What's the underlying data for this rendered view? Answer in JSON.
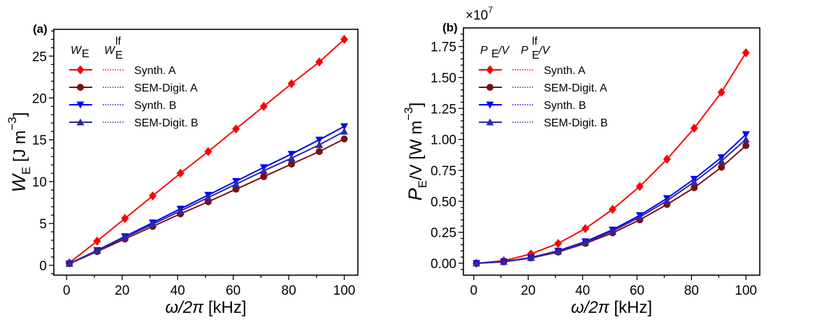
{
  "chart_data": [
    {
      "type": "line",
      "panel_label": "(a)",
      "xlabel": {
        "main": "ω/2π",
        "unit": " [kHz]"
      },
      "ylabel": {
        "main": "W",
        "sub": "E",
        "unit": " [J m",
        "sup": "−3",
        "close": "]"
      },
      "legend_headers": [
        {
          "main": "W",
          "sub": "E",
          "sup": ""
        },
        {
          "main": "W",
          "sub": "E",
          "sup": "lf"
        }
      ],
      "legend_placement": "upper-left",
      "xlim": [
        -4.6,
        104.9
      ],
      "ylim": [
        -1.17,
        28.2
      ],
      "xticks": [
        0,
        20,
        40,
        60,
        80,
        100
      ],
      "yticks": [
        0,
        5,
        10,
        15,
        20,
        25
      ],
      "x": [
        1,
        11,
        21,
        31,
        41,
        51,
        61,
        71,
        81,
        91,
        100
      ],
      "series": [
        {
          "name": "Synth. A",
          "color": "#ff0000",
          "marker": "diamond",
          "values": [
            0.3,
            2.9,
            5.6,
            8.3,
            11.0,
            13.6,
            16.3,
            19.0,
            21.7,
            24.3,
            27.0
          ]
        },
        {
          "name": "SEM-Digit. A",
          "color": "#7a1010",
          "marker": "circle",
          "values": [
            0.2,
            1.65,
            3.15,
            4.65,
            6.15,
            7.6,
            9.1,
            10.6,
            12.1,
            13.6,
            15.1
          ]
        },
        {
          "name": "Synth. B",
          "color": "#0000ff",
          "marker": "triangle-down",
          "values": [
            0.2,
            1.8,
            3.45,
            5.1,
            6.75,
            8.4,
            10.05,
            11.7,
            13.3,
            15.0,
            16.6
          ]
        },
        {
          "name": "SEM-Digit. B",
          "color": "#2b2b9c",
          "marker": "triangle-up",
          "values": [
            0.2,
            1.75,
            3.35,
            4.9,
            6.5,
            8.1,
            9.7,
            11.3,
            12.8,
            14.4,
            16.0
          ]
        }
      ]
    },
    {
      "type": "line",
      "panel_label": "(b)",
      "scale_label": {
        "main": "×10",
        "sup": "7"
      },
      "xlabel": {
        "main": "ω/2π",
        "unit": " [kHz]"
      },
      "ylabel": {
        "main": "P",
        "sub": "E",
        "unit": "/V [W m",
        "sup": "−3",
        "close": "]"
      },
      "legend_headers": [
        {
          "main": "P",
          "sub": "E",
          "sup": "",
          "tail": "/V"
        },
        {
          "main": "P",
          "sub": "E",
          "sup": "lf",
          "tail": "/V"
        }
      ],
      "legend_placement": "upper-left",
      "xlim": [
        -3.8,
        105.1
      ],
      "ylim": [
        -0.096,
        1.9
      ],
      "xticks": [
        0,
        20,
        40,
        60,
        80,
        100
      ],
      "yticks": [
        0.0,
        0.25,
        0.5,
        0.75,
        1.0,
        1.25,
        1.5,
        1.75
      ],
      "ytick_labels": [
        "0.00",
        "0.25",
        "0.50",
        "0.75",
        "1.00",
        "1.25",
        "1.50",
        "1.75"
      ],
      "x": [
        1,
        11,
        21,
        31,
        41,
        51,
        61,
        71,
        81,
        91,
        100
      ],
      "series": [
        {
          "name": "Synth. A",
          "color": "#ff0000",
          "marker": "diamond",
          "values": [
            0.0,
            0.02,
            0.075,
            0.16,
            0.28,
            0.435,
            0.62,
            0.84,
            1.09,
            1.38,
            1.7
          ]
        },
        {
          "name": "SEM-Digit. A",
          "color": "#7a1010",
          "marker": "circle",
          "values": [
            0.0,
            0.011,
            0.042,
            0.09,
            0.16,
            0.245,
            0.35,
            0.475,
            0.61,
            0.775,
            0.95
          ]
        },
        {
          "name": "Synth. B",
          "color": "#0000ff",
          "marker": "triangle-down",
          "values": [
            0.0,
            0.013,
            0.046,
            0.1,
            0.175,
            0.27,
            0.387,
            0.524,
            0.68,
            0.855,
            1.04
          ]
        },
        {
          "name": "SEM-Digit. B",
          "color": "#2b2b9c",
          "marker": "triangle-up",
          "values": [
            0.0,
            0.012,
            0.044,
            0.096,
            0.168,
            0.26,
            0.372,
            0.504,
            0.656,
            0.825,
            1.0
          ]
        }
      ]
    }
  ]
}
